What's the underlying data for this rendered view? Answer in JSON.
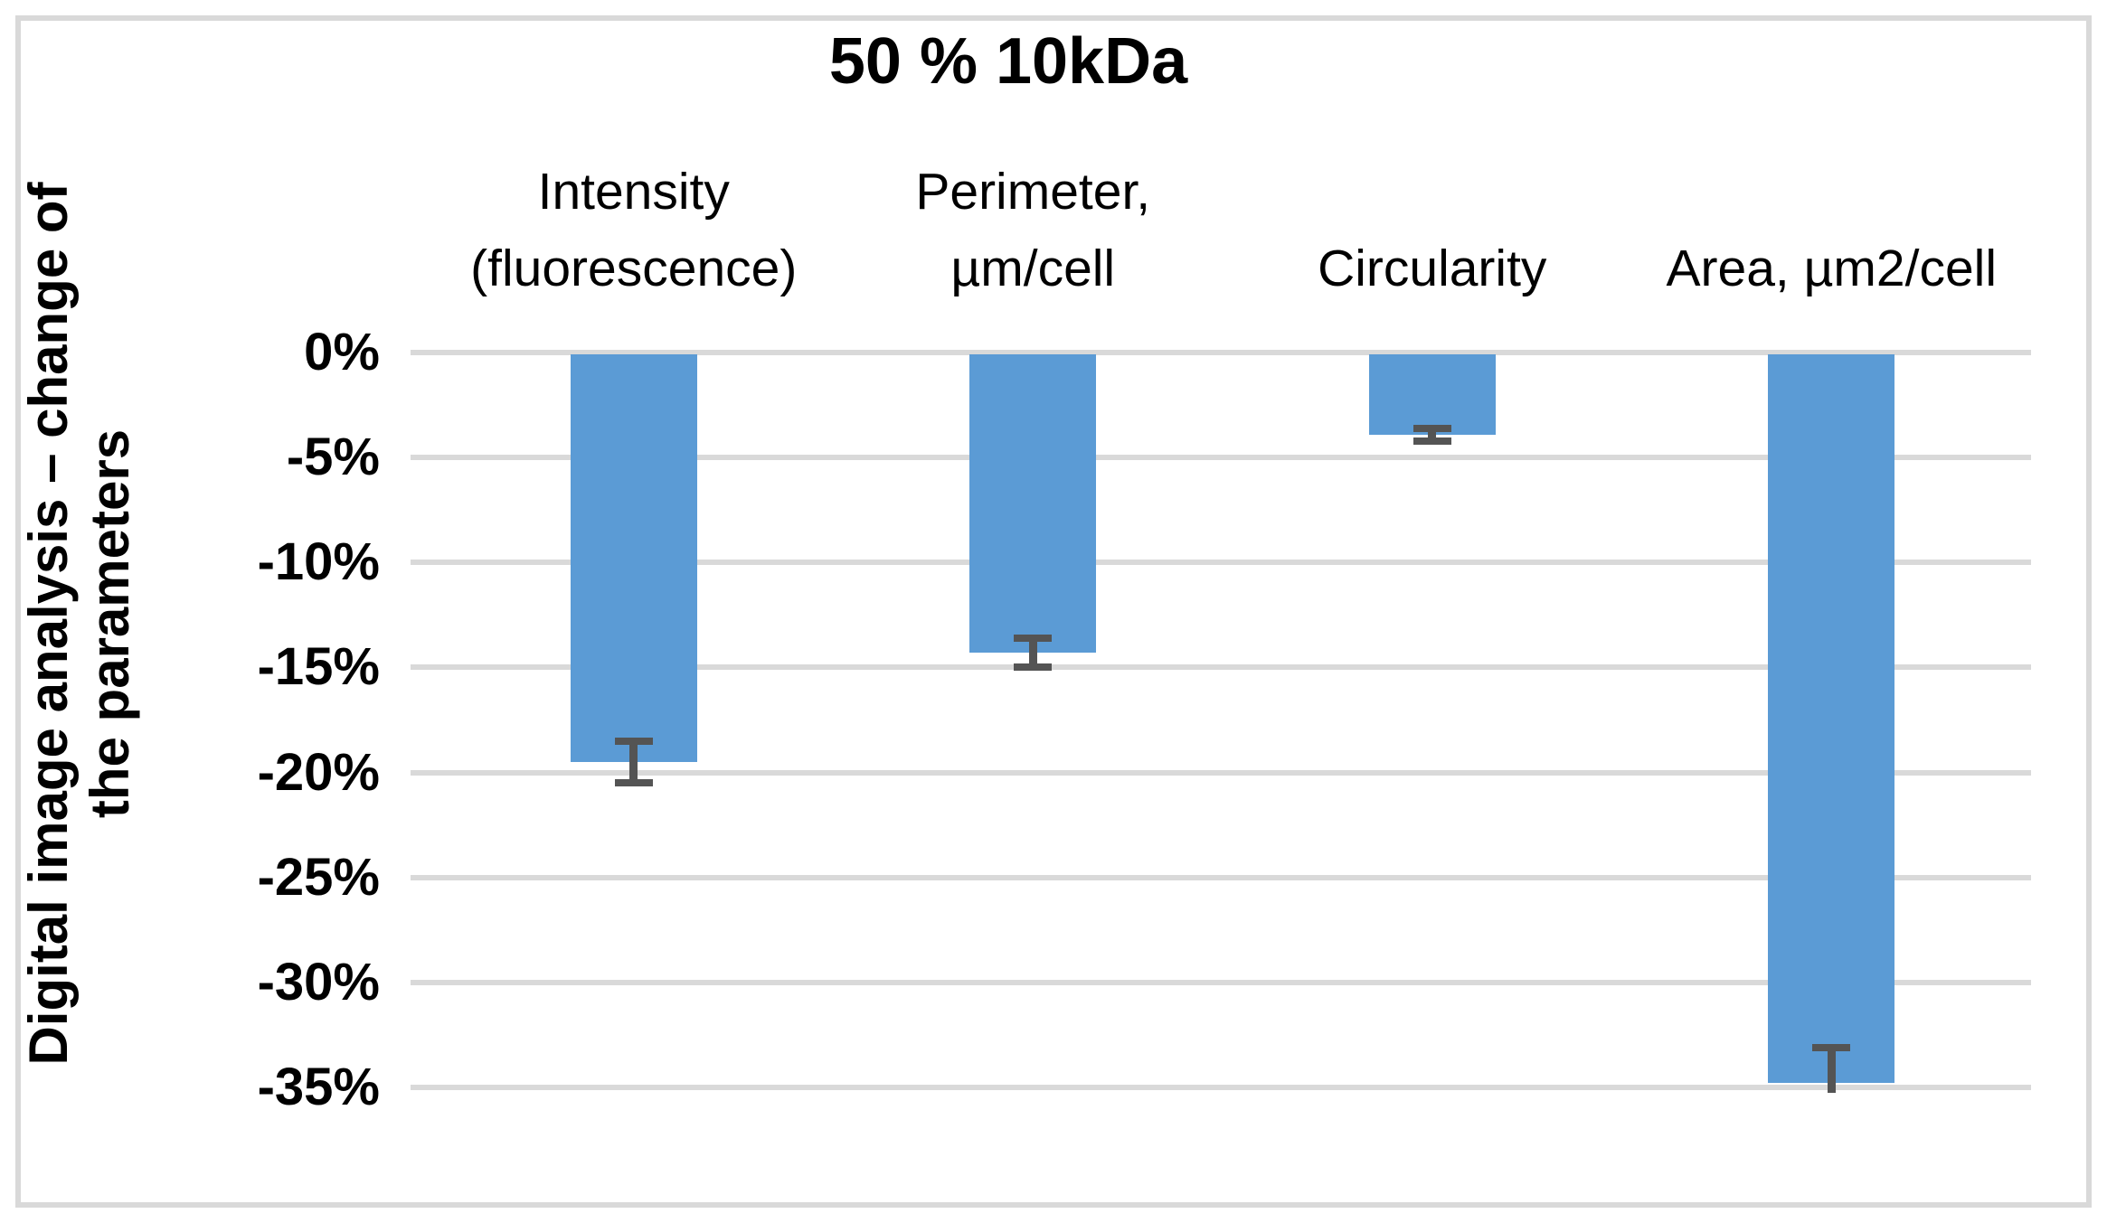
{
  "chart_data": {
    "type": "bar",
    "title": "50 % 10kDa",
    "ylabel_lines": [
      "Digital image analysis – change of",
      "the parameters"
    ],
    "categories": [
      {
        "label_lines": [
          "Intensity",
          "(fluorescence)"
        ]
      },
      {
        "label_lines": [
          "Perimeter,",
          "µm/cell"
        ]
      },
      {
        "label_lines": [
          "Circularity"
        ]
      },
      {
        "label_lines": [
          "Area, µm2/cell"
        ]
      }
    ],
    "values": [
      -19.5,
      -14.3,
      -3.9,
      -34.8
    ],
    "errors": [
      {
        "plus": 1.0,
        "minus": 1.0,
        "cap_plus": true,
        "cap_minus": true
      },
      {
        "plus": 0.7,
        "minus": 0.7,
        "cap_plus": true,
        "cap_minus": true
      },
      {
        "plus": 0.3,
        "minus": 0.3,
        "cap_plus": true,
        "cap_minus": true
      },
      {
        "plus": 1.7,
        "minus": 0.45,
        "cap_plus": true,
        "cap_minus": false
      }
    ],
    "yticks": {
      "values": [
        0,
        -5,
        -10,
        -15,
        -20,
        -25,
        -30,
        -35
      ],
      "labels": [
        "0%",
        "-5%",
        "-10%",
        "-15%",
        "-20%",
        "-25%",
        "-30%",
        "-35%"
      ]
    },
    "ylim": [
      0,
      -35
    ],
    "grid": true,
    "legend": null,
    "xlabel": "",
    "colors": {
      "bar": "#5B9BD5",
      "error_bar": "#545454",
      "gridline": "#D9D9D9",
      "border": "#D9D9D9",
      "text": "#000000"
    }
  }
}
